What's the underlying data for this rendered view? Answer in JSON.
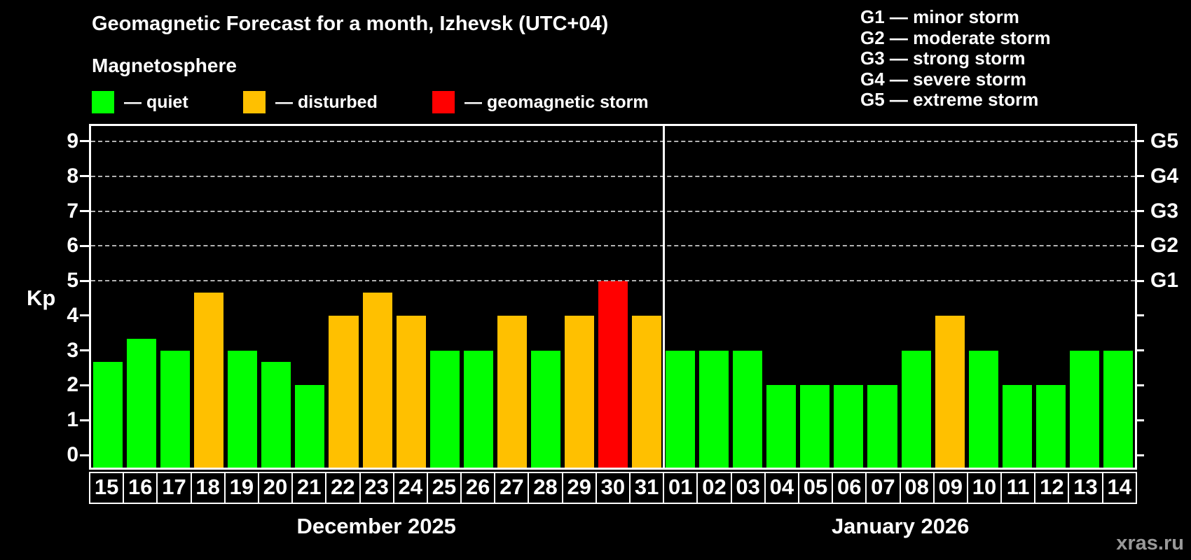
{
  "title": "Geomagnetic Forecast for a month, Izhevsk (UTC+04)",
  "subtitle": "Magnetosphere",
  "watermark": "xras.ru",
  "colors": {
    "background": "#000000",
    "quiet": "#00ff00",
    "disturbed": "#ffc000",
    "storm": "#ff0000",
    "axis": "#ffffff",
    "gridline": "#b3b3b3",
    "watermark_text": "#999999"
  },
  "legend": [
    {
      "status": "quiet",
      "label": "— quiet"
    },
    {
      "status": "disturbed",
      "label": "— disturbed"
    },
    {
      "status": "storm",
      "label": "— geomagnetic storm"
    }
  ],
  "g_legend": [
    "G1 — minor storm",
    "G2 — moderate storm",
    "G3 — strong storm",
    "G4 — severe storm",
    "G5 — extreme storm"
  ],
  "chart_data": {
    "type": "bar",
    "ylabel": "Kp",
    "ylim": [
      0,
      9
    ],
    "yticks": [
      0,
      1,
      2,
      3,
      4,
      5,
      6,
      7,
      8,
      9
    ],
    "grid": "dashed horizontal lines at Kp 5-9 only",
    "legend_position": "top",
    "g_levels": [
      {
        "kp": 5,
        "label": "G1"
      },
      {
        "kp": 6,
        "label": "G2"
      },
      {
        "kp": 7,
        "label": "G3"
      },
      {
        "kp": 8,
        "label": "G4"
      },
      {
        "kp": 9,
        "label": "G5"
      }
    ],
    "months": [
      {
        "label": "December 2025",
        "days": [
          {
            "day": "15",
            "kp": 2.67,
            "status": "quiet"
          },
          {
            "day": "16",
            "kp": 3.33,
            "status": "quiet"
          },
          {
            "day": "17",
            "kp": 3.0,
            "status": "quiet"
          },
          {
            "day": "18",
            "kp": 4.67,
            "status": "disturbed"
          },
          {
            "day": "19",
            "kp": 3.0,
            "status": "quiet"
          },
          {
            "day": "20",
            "kp": 2.67,
            "status": "quiet"
          },
          {
            "day": "21",
            "kp": 2.0,
            "status": "quiet"
          },
          {
            "day": "22",
            "kp": 4.0,
            "status": "disturbed"
          },
          {
            "day": "23",
            "kp": 4.67,
            "status": "disturbed"
          },
          {
            "day": "24",
            "kp": 4.0,
            "status": "disturbed"
          },
          {
            "day": "25",
            "kp": 3.0,
            "status": "quiet"
          },
          {
            "day": "26",
            "kp": 3.0,
            "status": "quiet"
          },
          {
            "day": "27",
            "kp": 4.0,
            "status": "disturbed"
          },
          {
            "day": "28",
            "kp": 3.0,
            "status": "quiet"
          },
          {
            "day": "29",
            "kp": 4.0,
            "status": "disturbed"
          },
          {
            "day": "30",
            "kp": 5.0,
            "status": "storm"
          },
          {
            "day": "31",
            "kp": 4.0,
            "status": "disturbed"
          }
        ]
      },
      {
        "label": "January 2026",
        "days": [
          {
            "day": "01",
            "kp": 3.0,
            "status": "quiet"
          },
          {
            "day": "02",
            "kp": 3.0,
            "status": "quiet"
          },
          {
            "day": "03",
            "kp": 3.0,
            "status": "quiet"
          },
          {
            "day": "04",
            "kp": 2.0,
            "status": "quiet"
          },
          {
            "day": "05",
            "kp": 2.0,
            "status": "quiet"
          },
          {
            "day": "06",
            "kp": 2.0,
            "status": "quiet"
          },
          {
            "day": "07",
            "kp": 2.0,
            "status": "quiet"
          },
          {
            "day": "08",
            "kp": 3.0,
            "status": "quiet"
          },
          {
            "day": "09",
            "kp": 4.0,
            "status": "disturbed"
          },
          {
            "day": "10",
            "kp": 3.0,
            "status": "quiet"
          },
          {
            "day": "11",
            "kp": 2.0,
            "status": "quiet"
          },
          {
            "day": "12",
            "kp": 2.0,
            "status": "quiet"
          },
          {
            "day": "13",
            "kp": 3.0,
            "status": "quiet"
          },
          {
            "day": "14",
            "kp": 3.0,
            "status": "quiet"
          }
        ]
      }
    ]
  }
}
